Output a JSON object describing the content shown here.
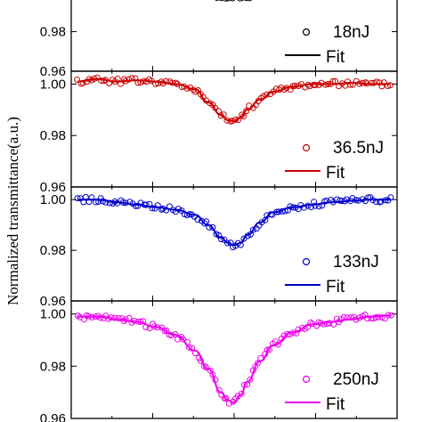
{
  "chart_data": {
    "type": "scatter",
    "ylabel": "Normalized transmittance(a.u.)",
    "xlabel": "",
    "x_domain": [
      -50,
      50
    ],
    "panels": [
      {
        "ylim": [
          0.96,
          1.005
        ],
        "yticks": [
          "0.98",
          "0.96"
        ],
        "ytick_values": [
          0.98,
          0.96
        ],
        "color": "#000000",
        "series": [
          {
            "name": "18nJ",
            "kind": "data"
          },
          {
            "name": "Fit",
            "kind": "fit"
          }
        ],
        "x": [
          -7,
          -5,
          -3,
          -1,
          1,
          3,
          5,
          7
        ],
        "values": [
          0.9985,
          0.9978,
          0.9975,
          0.9973,
          0.9974,
          0.9976,
          0.998,
          0.9986
        ]
      },
      {
        "ylim": [
          0.96,
          1.005
        ],
        "yticks": [
          "1.00",
          "0.98",
          "0.96"
        ],
        "ytick_values": [
          1.0,
          0.98,
          0.96
        ],
        "color": "#cc0000",
        "series": [
          {
            "name": "36.5nJ",
            "kind": "data"
          },
          {
            "name": "Fit",
            "kind": "fit"
          }
        ],
        "x": [
          -48,
          -42,
          -36,
          -30,
          -24,
          -18,
          -12,
          -8,
          -4,
          -2,
          0,
          2,
          4,
          8,
          12,
          18,
          24,
          30,
          36,
          42,
          48
        ],
        "values": [
          1.001,
          1.002,
          1.001,
          1.0015,
          1.001,
          1.0,
          0.998,
          0.993,
          0.988,
          0.986,
          0.9855,
          0.987,
          0.99,
          0.994,
          0.997,
          0.999,
          1.0,
          1.0,
          1.0005,
          1.0,
          1.0
        ]
      },
      {
        "ylim": [
          0.96,
          1.005
        ],
        "yticks": [
          "1.00",
          "0.98",
          "0.96"
        ],
        "ytick_values": [
          1.0,
          0.98,
          0.96
        ],
        "color": "#0000cc",
        "series": [
          {
            "name": "133nJ",
            "kind": "data"
          },
          {
            "name": "Fit",
            "kind": "fit"
          }
        ],
        "x": [
          -48,
          -42,
          -36,
          -30,
          -24,
          -18,
          -12,
          -8,
          -4,
          -2,
          0,
          2,
          4,
          8,
          12,
          18,
          24,
          30,
          36,
          42,
          48
        ],
        "values": [
          1.0,
          1.0,
          0.999,
          0.998,
          0.997,
          0.996,
          0.994,
          0.99,
          0.985,
          0.983,
          0.982,
          0.983,
          0.986,
          0.991,
          0.995,
          0.997,
          0.998,
          0.999,
          0.9995,
          1.0,
          1.0
        ]
      },
      {
        "ylim": [
          0.96,
          1.005
        ],
        "yticks": [
          "1.00",
          "0.98",
          "0.96"
        ],
        "ytick_values": [
          1.0,
          0.98,
          0.96
        ],
        "color": "#ee00ee",
        "series": [
          {
            "name": "250nJ",
            "kind": "data"
          },
          {
            "name": "Fit",
            "kind": "fit"
          }
        ],
        "x": [
          -48,
          -42,
          -36,
          -30,
          -24,
          -18,
          -12,
          -8,
          -4,
          -2,
          0,
          2,
          4,
          8,
          12,
          18,
          24,
          30,
          36,
          42,
          48
        ],
        "values": [
          0.999,
          0.999,
          0.998,
          0.997,
          0.995,
          0.992,
          0.986,
          0.979,
          0.97,
          0.967,
          0.966,
          0.969,
          0.974,
          0.982,
          0.988,
          0.993,
          0.996,
          0.997,
          0.998,
          0.999,
          0.9995
        ]
      }
    ]
  }
}
